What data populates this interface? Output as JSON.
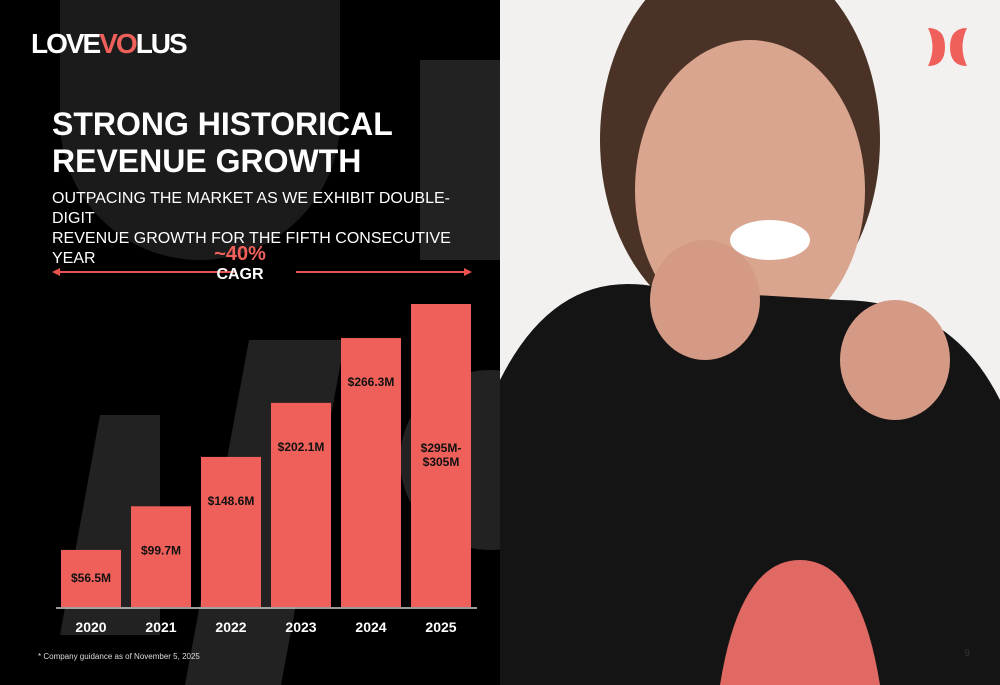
{
  "brand": {
    "logo_text": "LOVEVOLUS",
    "accent": "#f0605a"
  },
  "title": "STRONG HISTORICAL REVENUE GROWTH",
  "title_lines": [
    "STRONG HISTORICAL",
    "REVENUE GROWTH"
  ],
  "subtitle_lines": [
    "OUTPACING THE MARKET AS WE EXHIBIT DOUBLE-DIGIT",
    "REVENUE GROWTH FOR THE FIFTH CONSECUTIVE YEAR"
  ],
  "cagr": {
    "value": "~40%",
    "label": "CAGR"
  },
  "footnote": "* Company guidance as of November 5, 2025",
  "page_number": "9",
  "chart_data": {
    "type": "bar",
    "categories": [
      "2020",
      "2021",
      "2022",
      "2023",
      "2024",
      "2025"
    ],
    "values": [
      56.5,
      99.7,
      148.6,
      202.1,
      266.3,
      300
    ],
    "ranges": {
      "2025": [
        295,
        305
      ]
    },
    "data_labels": [
      "$56.5M",
      "$99.7M",
      "$148.6M",
      "$202.1M",
      "$266.3M",
      "$295M-\n$305M"
    ],
    "ylim": [
      0,
      300
    ],
    "grid": false,
    "bar_color": "#f0605a"
  }
}
